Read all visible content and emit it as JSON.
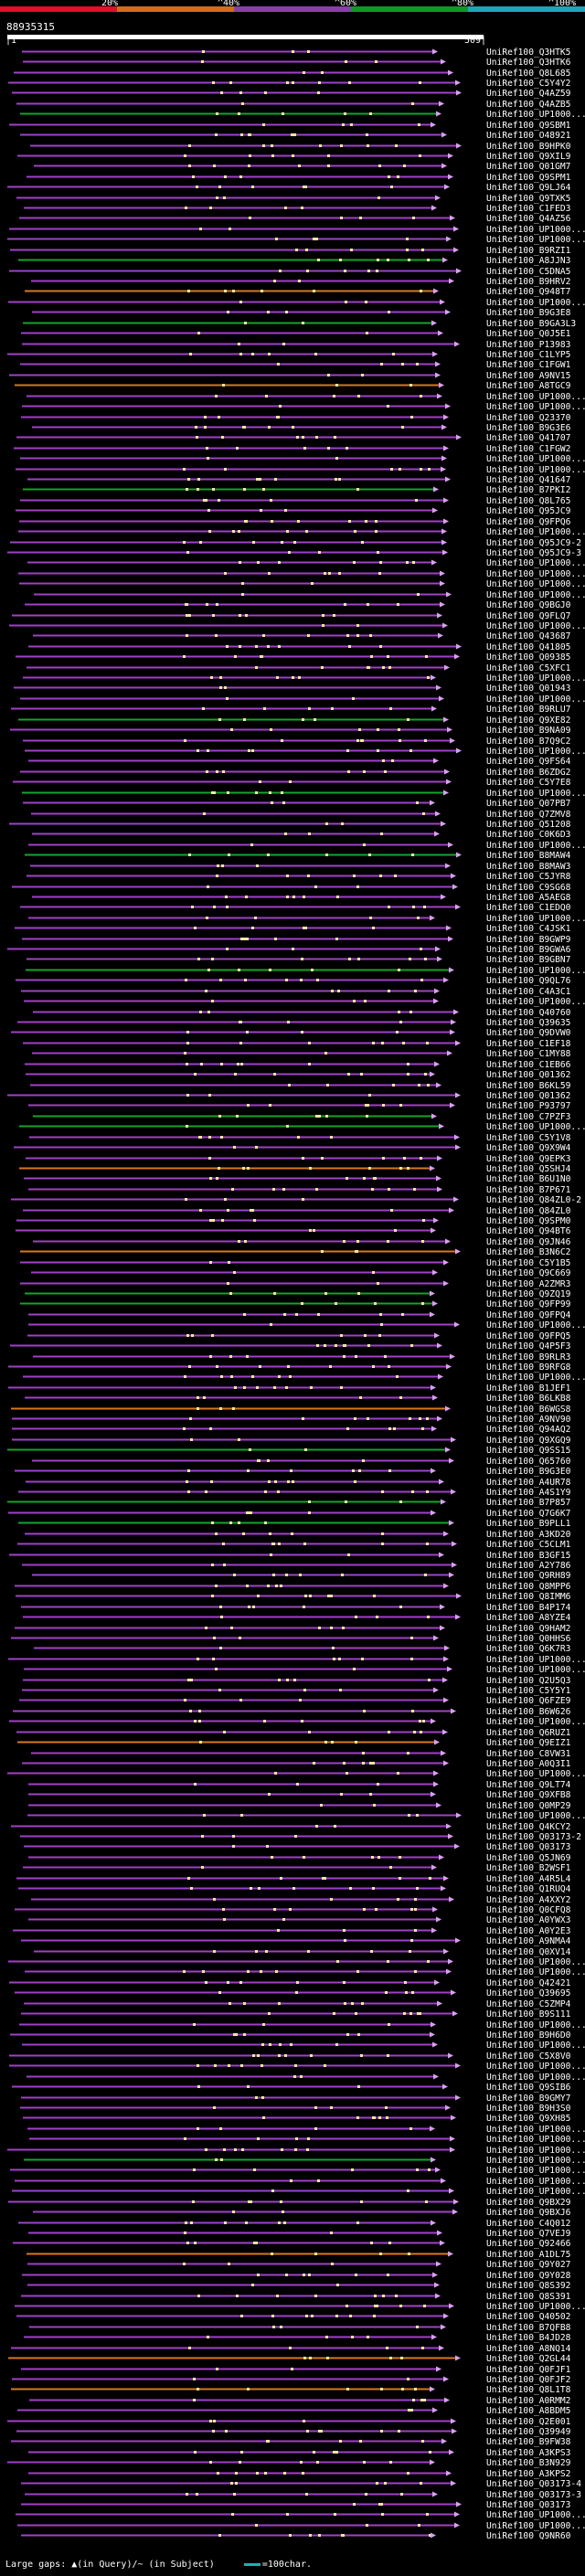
{
  "legend": {
    "percent_labels": [
      "20%",
      "^40%",
      "^60%",
      "^80%",
      "^100%"
    ],
    "colors": [
      "#e0102a",
      "#d86a18",
      "#8a3fa8",
      "#0b9a2a",
      "#1ba7b8"
    ]
  },
  "query_title": "88935315",
  "ruler": {
    "start": "|1",
    "end": "509|"
  },
  "hits": [
    "UniRef100_Q3HTK5",
    "UniRef100_Q3HTK6",
    "UniRef100_Q8L685",
    "UniRef100_C5Y4Y2",
    "UniRef100_Q4AZ59",
    "UniRef100_Q4AZB5",
    "UniRef100_UP1000...",
    "UniRef100_Q9SBM1",
    "UniRef100_O48921",
    "UniRef100_B9HPK0",
    "UniRef100_Q9XIL9",
    "UniRef100_Q01GM7",
    "UniRef100_Q9SPM1",
    "UniRef100_Q9LJ64",
    "UniRef100_Q9TXK5",
    "UniRef100_C1FED3",
    "UniRef100_Q4AZ56",
    "UniRef100_UP1000...",
    "UniRef100_UP1000...",
    "UniRef100_B9RZI1",
    "UniRef100_A8JJN3",
    "UniRef100_C5DNA5",
    "UniRef100_B9HRV2",
    "UniRef100_Q948T7",
    "UniRef100_UP1000...",
    "UniRef100_B9G3E8",
    "UniRef100_B9GA3L3",
    "UniRef100_Q0J5E1",
    "UniRef100_P13983",
    "UniRef100_C1LYP5",
    "UniRef100_C1FGW1",
    "UniRef100_A9NV15",
    "UniRef100_A8TGC9",
    "UniRef100_UP1000...",
    "UniRef100_UP1000...",
    "UniRef100_Q23370",
    "UniRef100_B9G3E6",
    "UniRef100_Q41707",
    "UniRef100_C1FGW2",
    "UniRef100_UP1000...",
    "UniRef100_UP1000...",
    "UniRef100_Q41647",
    "UniRef100_B7PKI2",
    "UniRef100_Q8L765",
    "UniRef100_Q95JC9",
    "UniRef100_Q9FPQ6",
    "UniRef100_UP1000...",
    "UniRef100_Q95JC9-2",
    "UniRef100_Q95JC9-3",
    "UniRef100_UP1000...",
    "UniRef100_UP1000...",
    "UniRef100_UP1000...",
    "UniRef100_UP1000...",
    "UniRef100_Q9BGJ0",
    "UniRef100_Q9FLQ7",
    "UniRef100_UP1000...",
    "UniRef100_Q43687",
    "UniRef100_Q41805",
    "UniRef100_Q09385",
    "UniRef100_C5XFC1",
    "UniRef100_UP1000...",
    "UniRef100_Q01943",
    "UniRef100_UP1000...",
    "UniRef100_B9RLU7",
    "UniRef100_Q9XE82",
    "UniRef100_B9NA09",
    "UniRef100_B7Q9C2",
    "UniRef100_UP1000...",
    "UniRef100_Q9FS64",
    "UniRef100_B6ZDG2",
    "UniRef100_C5Y7E8",
    "UniRef100_UP1000...",
    "UniRef100_Q07PB7",
    "UniRef100_Q7ZMV8",
    "UniRef100_Q51208",
    "UniRef100_C0K6D3",
    "UniRef100_UP1000...",
    "UniRef100_B8MAW4",
    "UniRef100_B8MAW3",
    "UniRef100_C5JYR8",
    "UniRef100_C9SG68",
    "UniRef100_A5AEG8",
    "UniRef100_C1EDQ0",
    "UniRef100_UP1000...",
    "UniRef100_C4JSK1",
    "UniRef100_B9GWP9",
    "UniRef100_B9GWA6",
    "UniRef100_B9GBN7",
    "UniRef100_UP1000...",
    "UniRef100_Q9QL76",
    "UniRef100_C4A3C1",
    "UniRef100_UP1000...",
    "UniRef100_Q40760",
    "UniRef100_Q39635",
    "UniRef100_Q9DVW0",
    "UniRef100_C1EF18",
    "UniRef100_C1MY88",
    "UniRef100_C1EB66",
    "UniRef100_Q01362",
    "UniRef100_B6KL59",
    "UniRef100_Q01362",
    "UniRef100_P93797",
    "UniRef100_C7PZF3",
    "UniRef100_UP1000...",
    "UniRef100_C5Y1V8",
    "UniRef100_Q9X9W4",
    "UniRef100_Q9EPK3",
    "UniRef100_Q5SHJ4",
    "UniRef100_B6U1N0",
    "UniRef100_B7P671",
    "UniRef100_Q84ZL0-2",
    "UniRef100_Q84ZL0",
    "UniRef100_Q9SPM0",
    "UniRef100_Q94BT6",
    "UniRef100_Q9JN46",
    "UniRef100_B3N6C2",
    "UniRef100_C5Y1B5",
    "UniRef100_Q9C669",
    "UniRef100_A2ZMR3",
    "UniRef100_Q9ZQ19",
    "UniRef100_Q9FP99",
    "UniRef100_Q9FPQ4",
    "UniRef100_UP1000...",
    "UniRef100_Q9FPQ5",
    "UniRef100_Q4P5F3",
    "UniRef100_B9RLR3",
    "UniRef100_B9RFG8",
    "UniRef100_UP1000...",
    "UniRef100_B1JEF1",
    "UniRef100_B6LKB8",
    "UniRef100_B6WGS8",
    "UniRef100_A9NV90",
    "UniRef100_Q94AQ2",
    "UniRef100_Q9XGQ9",
    "UniRef100_Q9SS15",
    "UniRef100_Q65760",
    "UniRef100_B9G3E0",
    "UniRef100_A4UR78",
    "UniRef100_A4S1Y9",
    "UniRef100_B7P857",
    "UniRef100_Q7G6K7",
    "UniRef100_B9PLL1",
    "UniRef100_A3KD20",
    "UniRef100_C5CLM1",
    "UniRef100_B3GF15",
    "UniRef100_A2Y786",
    "UniRef100_Q9RH89",
    "UniRef100_Q8MPP6",
    "UniRef100_Q8IMM6",
    "UniRef100_B4P174",
    "UniRef100_A8YZE4",
    "UniRef100_Q9HAM2",
    "UniRef100_Q0HHS6",
    "UniRef100_Q6K7R3",
    "UniRef100_UP1000...",
    "UniRef100_UP1000...",
    "UniRef100_Q2U5Q3",
    "UniRef100_C5Y5Y1",
    "UniRef100_Q6FZE9",
    "UniRef100_B6W626",
    "UniRef100_UP1000...",
    "UniRef100_Q6RUZ1",
    "UniRef100_Q9EIZ1",
    "UniRef100_C8VW31",
    "UniRef100_A0Q3I1",
    "UniRef100_UP1000...",
    "UniRef100_Q9LT74",
    "UniRef100_Q9XFB8",
    "UniRef100_Q0MP29",
    "UniRef100_UP1000...",
    "UniRef100_Q4KCY2",
    "UniRef100_Q03173-2",
    "UniRef100_Q03173",
    "UniRef100_Q5JN69",
    "UniRef100_B2WSF1",
    "UniRef100_A4R5L4",
    "UniRef100_Q1RUQ4",
    "UniRef100_A4XXY2",
    "UniRef100_Q0CFQ8",
    "UniRef100_A0YWX3",
    "UniRef100_A0Y2E3",
    "UniRef100_A9NMA4",
    "UniRef100_Q0XV14",
    "UniRef100_UP1000...",
    "UniRef100_UP1000...",
    "UniRef100_Q42421",
    "UniRef100_Q39695",
    "UniRef100_C5ZMP4",
    "UniRef100_B9S111",
    "UniRef100_UP1000...",
    "UniRef100_B9H6D0",
    "UniRef100_UP1000...",
    "UniRef100_C5X8V0",
    "UniRef100_UP1000...",
    "UniRef100_UP1000...",
    "UniRef100_Q9SIB6",
    "UniRef100_B9GMY7",
    "UniRef100_B9H3S0",
    "UniRef100_Q9XH85",
    "UniRef100_UP1000...",
    "UniRef100_UP1000...",
    "UniRef100_UP1000...",
    "UniRef100_UP1000...",
    "UniRef100_UP1000...",
    "UniRef100_UP1000...",
    "UniRef100_UP1000...",
    "UniRef100_Q9BX29",
    "UniRef100_Q9BXJ6",
    "UniRef100_C4Q012",
    "UniRef100_Q7VEJ9",
    "UniRef100_Q92466",
    "UniRef100_A1DL75",
    "UniRef100_Q9Y027",
    "UniRef100_Q9Y028",
    "UniRef100_Q8S392",
    "UniRef100_Q8S391",
    "UniRef100_UP1000...",
    "UniRef100_Q40502",
    "UniRef100_B7QFB8",
    "UniRef100_B4JD28",
    "UniRef100_A8NQ14",
    "UniRef100_Q2GL44",
    "UniRef100_Q0FJF1",
    "UniRef100_Q0FJF2",
    "UniRef100_Q8L1T8",
    "UniRef100_A0RMM2",
    "UniRef100_A8BDM5",
    "UniRef100_Q2E001",
    "UniRef100_Q39949",
    "UniRef100_B9FW38",
    "UniRef100_A3KPS3",
    "UniRef100_B3N929",
    "UniRef100_A3KPS2",
    "UniRef100_Q03173-4",
    "UniRef100_Q03173-3",
    "UniRef100_Q03173",
    "UniRef100_UP1000...",
    "UniRef100_UP1000...",
    "UniRef100_Q9NR60"
  ],
  "footer": {
    "text": "Large gaps: ▲(in Query)/~ (in Subject)",
    "scale": "=100char."
  }
}
